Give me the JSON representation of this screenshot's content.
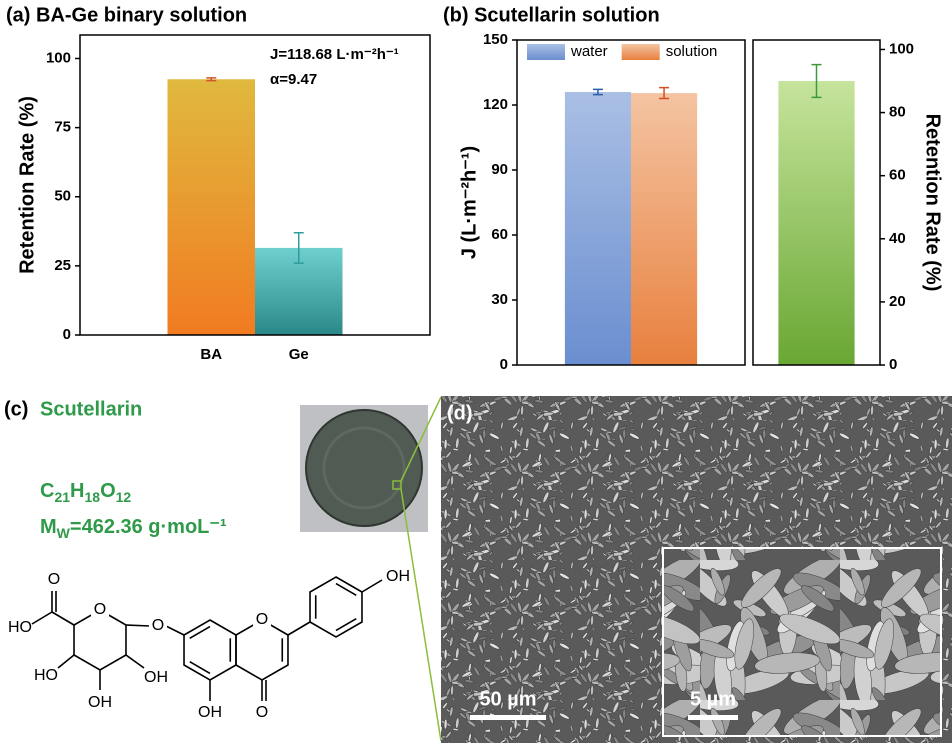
{
  "chart_data": [
    {
      "type": "bar",
      "title": "(a) BA-Ge binary solution",
      "ylabel": "Retention Rate (%)",
      "categories": [
        "BA",
        "Ge"
      ],
      "values": [
        92.5,
        31.5
      ],
      "errors": [
        0.5,
        5.5
      ],
      "gradients": [
        [
          "#e0b93e",
          "#f17b21"
        ],
        [
          "#6fd0d0",
          "#2a8888"
        ]
      ],
      "error_colors": [
        "#d0552a",
        "#2f9c9c"
      ],
      "ylim": [
        0,
        108.5
      ],
      "yticks": [
        0,
        25,
        50,
        75,
        100
      ],
      "annotations": [
        "J=118.68 L·m⁻²h⁻¹",
        "α=9.47"
      ]
    },
    {
      "type": "bar",
      "title": "(b) Scutellarin solution",
      "ylabel": "J (L·m⁻²h⁻¹)",
      "series": [
        {
          "name": "water",
          "values": [
            126
          ],
          "errors": [
            1.2
          ],
          "gradient": [
            "#aabfe4",
            "#6a8ed0"
          ],
          "error_color": "#2a5ea8"
        },
        {
          "name": "solution",
          "values": [
            125.5
          ],
          "errors": [
            2.5
          ],
          "gradient": [
            "#f4c4a2",
            "#e8803e"
          ],
          "error_color": "#d24f20"
        }
      ],
      "ylim": [
        0,
        150
      ],
      "yticks": [
        0,
        30,
        60,
        90,
        120,
        150
      ],
      "legend": "top-left"
    },
    {
      "type": "bar",
      "ylabel": "Retention Rate (%)",
      "values": [
        90
      ],
      "errors": [
        5.2
      ],
      "gradients": [
        [
          "#c6e49c",
          "#69a733"
        ]
      ],
      "error_colors": [
        "#3a9a3a"
      ],
      "ylim": [
        0,
        103
      ],
      "yticks": [
        0,
        20,
        40,
        60,
        80,
        100
      ],
      "axis_side": "right"
    }
  ],
  "panel_c": {
    "label": "(c)",
    "name": "Scutellarin",
    "formula": [
      [
        "C",
        "21"
      ],
      [
        "H",
        "18"
      ],
      [
        "O",
        "12"
      ]
    ],
    "mw": {
      "symbol": "M",
      "subscript": "W",
      "value": "=462.36 g·moL⁻¹"
    },
    "structure_labels": [
      "O",
      "O",
      "OH",
      "O",
      "O",
      "HO",
      "HO",
      "OH",
      "OH",
      "O",
      "OH"
    ]
  },
  "panel_d": {
    "label": "(d)",
    "scale_main": "50 µm",
    "scale_inset": "5 µm"
  }
}
